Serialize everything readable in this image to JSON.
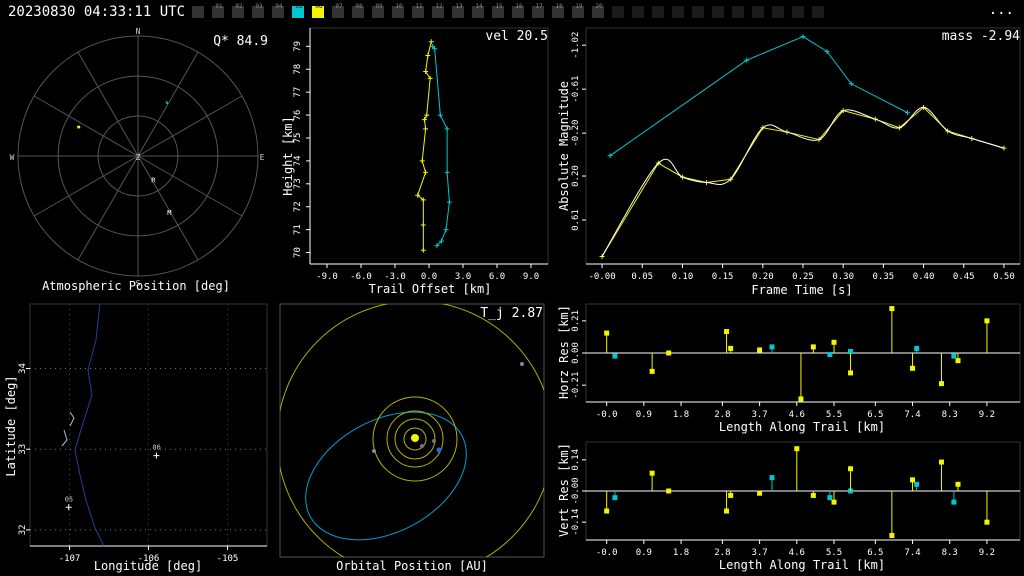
{
  "header": {
    "title": "20230830 04:33:11 UTC",
    "menu_label": "...",
    "cameras": [
      {
        "label": "",
        "state": "off"
      },
      {
        "label": "01",
        "state": "off"
      },
      {
        "label": "02",
        "state": "off"
      },
      {
        "label": "03",
        "state": "off"
      },
      {
        "label": "04",
        "state": "off"
      },
      {
        "label": "05",
        "state": "cyan"
      },
      {
        "label": "06",
        "state": "yellow"
      },
      {
        "label": "07",
        "state": "off"
      },
      {
        "label": "08",
        "state": "off"
      },
      {
        "label": "09",
        "state": "off"
      },
      {
        "label": "10",
        "state": "off"
      },
      {
        "label": "11",
        "state": "off"
      },
      {
        "label": "12",
        "state": "off"
      },
      {
        "label": "13",
        "state": "off"
      },
      {
        "label": "14",
        "state": "off"
      },
      {
        "label": "15",
        "state": "off"
      },
      {
        "label": "16",
        "state": "off"
      },
      {
        "label": "17",
        "state": "off"
      },
      {
        "label": "18",
        "state": "off"
      },
      {
        "label": "19",
        "state": "off"
      },
      {
        "label": "20",
        "state": "off"
      },
      {
        "label": "",
        "state": "dark"
      },
      {
        "label": "",
        "state": "dark"
      },
      {
        "label": "",
        "state": "dark"
      },
      {
        "label": "",
        "state": "dark"
      },
      {
        "label": "",
        "state": "dark"
      },
      {
        "label": "",
        "state": "dark"
      },
      {
        "label": "",
        "state": "dark"
      },
      {
        "label": "",
        "state": "dark"
      },
      {
        "label": "",
        "state": "dark"
      },
      {
        "label": "",
        "state": "dark"
      },
      {
        "label": "",
        "state": "dark"
      }
    ]
  },
  "colors": {
    "yellow": "#f5f500",
    "cyan": "#00c8d2",
    "grid": "#555555",
    "axis": "#ffffff",
    "orbit": "#c8c800"
  },
  "chart_data": [
    {
      "type": "scatter",
      "id": "atmospheric",
      "xlabel": "Atmospheric Position [deg]",
      "stat": "Q* 84.9",
      "compass": [
        "N",
        "E",
        "S",
        "W",
        "Z"
      ],
      "markers": [
        {
          "label": "R",
          "az": 150,
          "alt": 67
        },
        {
          "label": "M",
          "az": 152,
          "alt": 40
        }
      ],
      "series": [
        {
          "name": "05",
          "color": "cyan",
          "az": [
            28,
            29
          ],
          "alt": [
            45,
            44
          ]
        },
        {
          "name": "06",
          "color": "yellow",
          "az": [
            295,
            297
          ],
          "alt": [
            41,
            40
          ]
        }
      ]
    },
    {
      "type": "line",
      "id": "trail",
      "xlabel": "Trail Offset [km]",
      "ylabel": "Height [km]",
      "stat": "vel 20.5",
      "xticks": [
        "-9.0",
        "-6.0",
        "-3.0",
        "0.0",
        "3.0",
        "6.0",
        "9.0"
      ],
      "yticks": [
        "70",
        "71",
        "72",
        "73",
        "74",
        "75",
        "76",
        "77",
        "78",
        "79"
      ],
      "xlim": [
        -10.5,
        10.5
      ],
      "ylim": [
        69.5,
        79.8
      ],
      "series": [
        {
          "name": "05",
          "color": "cyan",
          "x": [
            0.3,
            0.5,
            1.0,
            1.6,
            1.6,
            1.8,
            1.5,
            1.1,
            0.7
          ],
          "y": [
            79.0,
            78.9,
            76.0,
            75.4,
            73.5,
            72.2,
            71.0,
            70.5,
            70.3
          ]
        },
        {
          "name": "06",
          "color": "yellow",
          "x": [
            0.2,
            -0.1,
            -0.3,
            0.1,
            -0.2,
            -0.4,
            -0.3,
            -0.6,
            -0.3,
            -1.0,
            -0.5,
            -0.5,
            -0.5
          ],
          "y": [
            79.2,
            78.6,
            77.9,
            77.6,
            76.0,
            75.8,
            75.4,
            74.0,
            73.5,
            72.5,
            72.3,
            71.2,
            70.1
          ]
        }
      ]
    },
    {
      "type": "line",
      "id": "magnitude",
      "xlabel": "Frame Time [s]",
      "ylabel": "Absolute Magnitude",
      "stat": "mass -2.94",
      "xticks": [
        "-0.00",
        "0.05",
        "0.10",
        "0.15",
        "0.20",
        "0.25",
        "0.30",
        "0.35",
        "0.40",
        "0.45",
        "0.50"
      ],
      "yticks": [
        "-1.02",
        "-0.61",
        "-0.20",
        "0.20",
        "0.61"
      ],
      "xlim": [
        -0.02,
        0.52
      ],
      "ylim": [
        1.02,
        -1.18
      ],
      "series": [
        {
          "name": "05",
          "color": "cyan",
          "x": [
            0.01,
            0.18,
            0.25,
            0.28,
            0.31,
            0.38
          ],
          "y": [
            0.01,
            -0.88,
            -1.1,
            -0.96,
            -0.66,
            -0.39
          ]
        },
        {
          "name": "06",
          "color": "yellow",
          "x": [
            0.0,
            0.07,
            0.1,
            0.13,
            0.16,
            0.2,
            0.23,
            0.27,
            0.3,
            0.34,
            0.37,
            0.4,
            0.43,
            0.46,
            0.5
          ],
          "y": [
            0.95,
            0.08,
            0.21,
            0.26,
            0.23,
            -0.25,
            -0.21,
            -0.14,
            -0.41,
            -0.33,
            -0.25,
            -0.44,
            -0.22,
            -0.15,
            -0.06
          ]
        }
      ]
    },
    {
      "type": "scatter",
      "id": "map",
      "xlabel": "Longitude [deg]",
      "ylabel": "Latitude [deg]",
      "xticks": [
        "-107",
        "-106",
        "-105"
      ],
      "yticks": [
        "32",
        "33",
        "34"
      ],
      "xlim": [
        -107.5,
        -104.5
      ],
      "ylim": [
        31.8,
        34.8
      ],
      "stations": [
        {
          "label": "05",
          "lon": -107.01,
          "lat": 32.28
        },
        {
          "label": "06",
          "lon": -105.9,
          "lat": 32.92
        }
      ]
    },
    {
      "type": "scatter",
      "id": "orbit",
      "xlabel": "Orbital Position [AU]",
      "stat": "T_j 2.87"
    },
    {
      "type": "scatter",
      "id": "horz_res",
      "xlabel": "Length Along Trail [km]",
      "ylabel": "Horz Res [km]",
      "xticks": [
        "-0.0",
        "0.9",
        "1.8",
        "2.8",
        "3.7",
        "4.6",
        "5.5",
        "6.5",
        "7.4",
        "8.3",
        "9.2"
      ],
      "yticks": [
        "0.21",
        "0.00",
        "-0.21"
      ],
      "xlim": [
        -0.5,
        10.0
      ],
      "ylim": [
        -0.32,
        0.32
      ],
      "series": [
        {
          "name": "05",
          "color": "cyan",
          "x": [
            0.2,
            4.0,
            5.4,
            5.9,
            7.5,
            8.4
          ],
          "y": [
            -0.02,
            0.04,
            -0.01,
            0.01,
            0.03,
            -0.02
          ]
        },
        {
          "name": "06",
          "color": "yellow",
          "x": [
            0.0,
            1.1,
            1.5,
            2.9,
            3.0,
            3.7,
            4.7,
            5.0,
            5.5,
            5.9,
            6.9,
            7.4,
            8.1,
            8.5,
            9.2
          ],
          "y": [
            0.13,
            -0.12,
            0.0,
            0.14,
            0.03,
            0.02,
            -0.3,
            0.04,
            0.07,
            -0.13,
            0.29,
            -0.1,
            -0.2,
            -0.05,
            0.21
          ]
        }
      ]
    },
    {
      "type": "scatter",
      "id": "vert_res",
      "xlabel": "Length Along Trail [km]",
      "ylabel": "Vert Res [km]",
      "xticks": [
        "-0.0",
        "0.9",
        "1.8",
        "2.8",
        "3.7",
        "4.6",
        "5.5",
        "6.5",
        "7.4",
        "8.3",
        "9.2"
      ],
      "yticks": [
        "0.14",
        "-0.00",
        "-0.14"
      ],
      "xlim": [
        -0.5,
        10.0
      ],
      "ylim": [
        -0.22,
        0.22
      ],
      "series": [
        {
          "name": "05",
          "color": "cyan",
          "x": [
            0.2,
            4.0,
            5.4,
            5.9,
            7.5,
            8.4
          ],
          "y": [
            -0.03,
            0.06,
            -0.03,
            0.0,
            0.03,
            -0.05
          ]
        },
        {
          "name": "06",
          "color": "yellow",
          "x": [
            0.0,
            1.1,
            1.5,
            2.9,
            3.0,
            3.7,
            4.6,
            5.0,
            5.5,
            5.9,
            6.9,
            7.4,
            8.1,
            8.5,
            9.2
          ],
          "y": [
            -0.09,
            0.08,
            0.0,
            -0.09,
            -0.02,
            -0.01,
            0.19,
            -0.02,
            -0.05,
            0.1,
            -0.2,
            0.05,
            0.13,
            0.03,
            -0.14
          ]
        }
      ]
    }
  ]
}
